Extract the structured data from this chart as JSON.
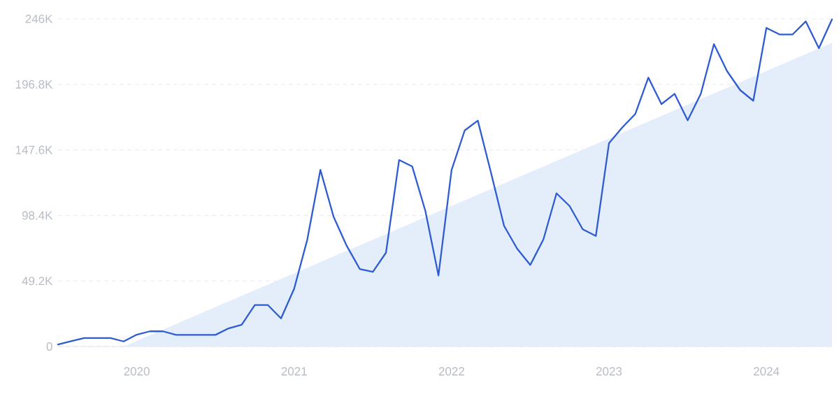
{
  "chart_data": {
    "type": "line",
    "x": [
      "2019-07",
      "2019-08",
      "2019-09",
      "2019-10",
      "2019-11",
      "2019-12",
      "2020-01",
      "2020-02",
      "2020-03",
      "2020-04",
      "2020-05",
      "2020-06",
      "2020-07",
      "2020-08",
      "2020-09",
      "2020-10",
      "2020-11",
      "2020-12",
      "2021-01",
      "2021-02",
      "2021-03",
      "2021-04",
      "2021-05",
      "2021-06",
      "2021-07",
      "2021-08",
      "2021-09",
      "2021-10",
      "2021-11",
      "2021-12",
      "2022-01",
      "2022-02",
      "2022-03",
      "2022-04",
      "2022-05",
      "2022-06",
      "2022-07",
      "2022-08",
      "2022-09",
      "2022-10",
      "2022-11",
      "2022-12",
      "2023-01",
      "2023-02",
      "2023-03",
      "2023-04",
      "2023-05",
      "2023-06",
      "2023-07",
      "2023-08",
      "2023-09",
      "2023-10",
      "2023-11",
      "2023-12",
      "2024-01",
      "2024-02",
      "2024-03",
      "2024-04",
      "2024-05",
      "2024-06"
    ],
    "series": [
      {
        "type": "area",
        "color": "#e4eefb",
        "x": [
          "2019-12",
          "2024-06"
        ],
        "values": [
          0,
          228000
        ]
      },
      {
        "color": "#2f5bd3",
        "values": [
          1500,
          4000,
          6300,
          6300,
          6300,
          3800,
          8900,
          11400,
          11400,
          8700,
          8700,
          8700,
          8700,
          13600,
          16300,
          31100,
          31100,
          21100,
          43400,
          80200,
          132600,
          97600,
          75700,
          58200,
          56000,
          70400,
          140000,
          135200,
          101900,
          53300,
          132500,
          162200,
          169600,
          130700,
          90600,
          73400,
          61200,
          80400,
          115000,
          105400,
          88000,
          83000,
          152600,
          164300,
          174500,
          201900,
          182000,
          189700,
          169800,
          189700,
          227000,
          206800,
          192500,
          184500,
          239200,
          234300,
          234300,
          244100,
          224000,
          245600
        ]
      }
    ],
    "xlim": [
      "2019-07",
      "2024-06"
    ],
    "xticks": [
      "2020",
      "2021",
      "2022",
      "2023",
      "2024"
    ],
    "ylim": [
      0,
      246000
    ],
    "yticks": [
      0,
      {
        "value": 49200,
        "label": "49.2K"
      },
      {
        "value": 98400,
        "label": "98.4K"
      },
      {
        "value": 147600,
        "label": "147.6K"
      },
      {
        "value": 196800,
        "label": "196.8K"
      },
      {
        "value": 246000,
        "label": "246K"
      }
    ],
    "grid": "y"
  }
}
